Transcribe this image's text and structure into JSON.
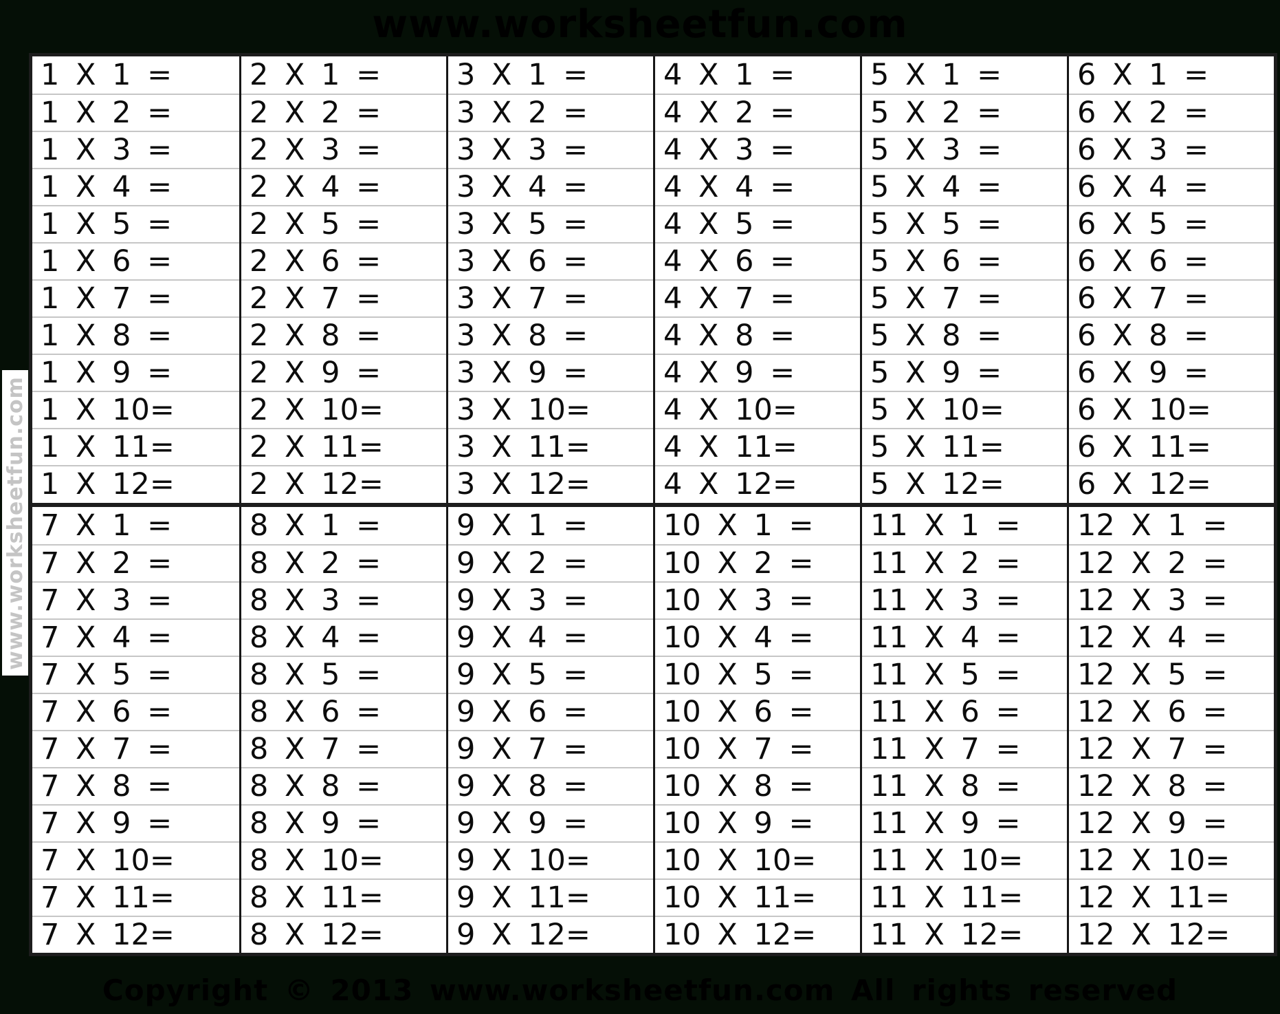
{
  "page": {
    "title": "www.worksheetfun.com",
    "watermark_vertical": "www.worksheetfun.com",
    "footer": "Copyright © 2013 www.worksheetfun.com All rights reserved"
  },
  "colors": {
    "background": "#050f06",
    "cell_bg": "#ffffff",
    "ink": "#000000",
    "cell_text": "#0c0c0c",
    "row_divider": "#c6c6c6",
    "col_divider": "#161616",
    "outer_border": "#1d1d1d",
    "watermark_bg": "#ffffff",
    "watermark_text": "#c4c4c4"
  },
  "table": {
    "halves": [
      {
        "name": "top",
        "blocks": [
          {
            "factor": 1,
            "rows": [
              "1 X 1 =",
              "1 X 2 =",
              "1 X 3 =",
              "1 X 4 =",
              "1 X 5 =",
              "1 X 6 =",
              "1 X 7 =",
              "1 X 8 =",
              "1 X 9 =",
              "1 X 10=",
              "1 X 11=",
              "1 X 12="
            ]
          },
          {
            "factor": 2,
            "rows": [
              "2 X 1 =",
              "2 X 2 =",
              "2 X 3 =",
              "2 X 4 =",
              "2 X 5 =",
              "2 X 6 =",
              "2 X 7 =",
              "2 X 8 =",
              "2 X 9 =",
              "2 X 10=",
              "2 X 11=",
              "2 X 12="
            ]
          },
          {
            "factor": 3,
            "rows": [
              "3 X 1 =",
              "3 X 2 =",
              "3 X 3 =",
              "3 X 4 =",
              "3 X 5 =",
              "3 X 6 =",
              "3 X 7 =",
              "3 X 8 =",
              "3 X 9 =",
              "3 X 10=",
              "3 X 11=",
              "3 X 12="
            ]
          },
          {
            "factor": 4,
            "rows": [
              "4 X 1 =",
              "4 X 2 =",
              "4 X 3 =",
              "4 X 4 =",
              "4 X 5 =",
              "4 X 6 =",
              "4 X 7 =",
              "4 X 8 =",
              "4 X 9 =",
              "4 X 10=",
              "4 X 11=",
              "4 X 12="
            ]
          },
          {
            "factor": 5,
            "rows": [
              "5 X 1 =",
              "5 X 2 =",
              "5 X 3 =",
              "5 X 4 =",
              "5 X 5 =",
              "5 X 6 =",
              "5 X 7 =",
              "5 X 8 =",
              "5 X 9 =",
              "5 X 10=",
              "5 X 11=",
              "5 X 12="
            ]
          },
          {
            "factor": 6,
            "rows": [
              "6 X 1 =",
              "6 X 2 =",
              "6 X 3 =",
              "6 X 4 =",
              "6 X 5 =",
              "6 X 6 =",
              "6 X 7 =",
              "6 X 8 =",
              "6 X 9 =",
              "6 X 10=",
              "6 X 11=",
              "6 X 12="
            ]
          }
        ]
      },
      {
        "name": "bottom",
        "blocks": [
          {
            "factor": 7,
            "rows": [
              "7 X 1 =",
              "7 X 2 =",
              "7 X 3 =",
              "7 X 4 =",
              "7 X 5 =",
              "7 X 6 =",
              "7 X 7 =",
              "7 X 8 =",
              "7 X 9 =",
              "7 X 10=",
              "7 X 11=",
              "7 X 12="
            ]
          },
          {
            "factor": 8,
            "rows": [
              "8 X 1 =",
              "8 X 2 =",
              "8 X 3 =",
              "8 X 4 =",
              "8 X 5 =",
              "8 X 6 =",
              "8 X 7 =",
              "8 X 8 =",
              "8 X 9 =",
              "8 X 10=",
              "8 X 11=",
              "8 X 12="
            ]
          },
          {
            "factor": 9,
            "rows": [
              "9 X 1 =",
              "9 X 2 =",
              "9 X 3 =",
              "9 X 4 =",
              "9 X 5 =",
              "9 X 6 =",
              "9 X 7 =",
              "9 X 8 =",
              "9 X 9 =",
              "9 X 10=",
              "9 X 11=",
              "9 X 12="
            ]
          },
          {
            "factor": 10,
            "rows": [
              "10 X 1 =",
              "10 X 2 =",
              "10 X 3 =",
              "10 X 4 =",
              "10 X 5 =",
              "10 X 6 =",
              "10 X 7 =",
              "10 X 8 =",
              "10 X 9 =",
              "10 X 10=",
              "10 X 11=",
              "10 X 12="
            ]
          },
          {
            "factor": 11,
            "rows": [
              "11 X 1 =",
              "11 X 2 =",
              "11 X 3 =",
              "11 X 4 =",
              "11 X 5 =",
              "11 X 6 =",
              "11 X 7 =",
              "11 X 8 =",
              "11 X 9 =",
              "11 X 10=",
              "11 X 11=",
              "11 X 12="
            ]
          },
          {
            "factor": 12,
            "rows": [
              "12 X 1 =",
              "12 X 2 =",
              "12 X 3 =",
              "12 X 4 =",
              "12 X 5 =",
              "12 X 6 =",
              "12 X 7 =",
              "12 X 8 =",
              "12 X 9 =",
              "12 X 10=",
              "12 X 11=",
              "12 X 12="
            ]
          }
        ]
      }
    ]
  }
}
